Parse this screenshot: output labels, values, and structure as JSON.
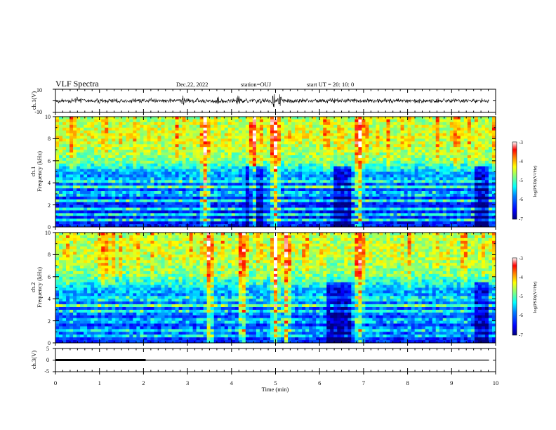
{
  "header": {
    "title": "VLF Spectra",
    "date": "Dec.22, 2022",
    "station": "station=OUJ",
    "start": "start  UT =   20: 10: 0"
  },
  "colors": {
    "background": "#ffffff",
    "axis": "#000000",
    "colormap": [
      "#00007f",
      "#0000ff",
      "#0080ff",
      "#00ffff",
      "#80ff80",
      "#ffff00",
      "#ff8000",
      "#ff0000",
      "#ffffff"
    ]
  },
  "chart_data": [
    {
      "type": "line",
      "name": "ch1-waveform",
      "ylabel": "ch.1(V)",
      "ylim": [
        -10,
        10
      ],
      "yticks": [
        "10",
        "-10"
      ],
      "xlim": [
        0,
        10
      ],
      "baseline_v": 0,
      "typical_amplitude_v": 2,
      "bursts": [
        {
          "t_min": 0.48,
          "amp_v": 6
        },
        {
          "t_min": 2.9,
          "amp_v": 5
        },
        {
          "t_min": 3.7,
          "amp_v": 5
        },
        {
          "t_min": 4.15,
          "amp_v": 6
        },
        {
          "t_min": 4.95,
          "amp_v": 10
        },
        {
          "t_min": 5.1,
          "amp_v": 8
        }
      ]
    },
    {
      "type": "heatmap",
      "name": "ch1-spectrogram",
      "title": "",
      "xlabel": "",
      "ylabel_line1": "ch.1",
      "ylabel_line2": "Frequency  (kHz)",
      "ylim": [
        0,
        10
      ],
      "yticks": [
        "0",
        "2",
        "4",
        "6",
        "8",
        "10"
      ],
      "xlim": [
        0,
        10
      ],
      "colorbar": {
        "label": "log(PSD)(V²/Hz)",
        "range": [
          -7,
          -3
        ],
        "ticks": [
          "-3",
          "-4",
          "-5",
          "-6",
          "-7"
        ]
      },
      "background_level_by_freq_khz": [
        [
          0,
          -6.4
        ],
        [
          2,
          -6.3
        ],
        [
          4,
          -6.0
        ],
        [
          5,
          -5.6
        ],
        [
          6,
          -4.8
        ],
        [
          8,
          -4.4
        ],
        [
          10,
          -4.6
        ]
      ],
      "bright_bands_khz": [
        0.6,
        1.1,
        1.6,
        2.4,
        3.0,
        3.6,
        4.2
      ],
      "quiet_intervals_min": [
        [
          4.3,
          4.7
        ],
        [
          6.35,
          6.75
        ],
        [
          9.5,
          9.85
        ]
      ],
      "bursts_min": [
        3.4,
        4.5,
        5.0,
        6.9
      ]
    },
    {
      "type": "heatmap",
      "name": "ch2-spectrogram",
      "title": "",
      "xlabel": "",
      "ylabel_line1": "ch.2",
      "ylabel_line2": "Frequency  (kHz)",
      "ylim": [
        0,
        10
      ],
      "yticks": [
        "0",
        "2",
        "4",
        "6",
        "8",
        "10"
      ],
      "xlim": [
        0,
        10
      ],
      "colorbar": {
        "label": "log(PSD)(V²/Hz)",
        "range": [
          -7,
          -3
        ],
        "ticks": [
          "-3",
          "-4",
          "-5",
          "-6",
          "-7"
        ]
      },
      "background_level_by_freq_khz": [
        [
          0,
          -6.3
        ],
        [
          2,
          -6.2
        ],
        [
          4,
          -5.9
        ],
        [
          5,
          -5.5
        ],
        [
          6,
          -4.9
        ],
        [
          8,
          -4.5
        ],
        [
          10,
          -4.6
        ]
      ],
      "bright_bands_khz": [
        0.7,
        1.2,
        2.0,
        2.8,
        3.4,
        4.0
      ],
      "quiet_intervals_min": [
        [
          6.2,
          6.7
        ],
        [
          9.5,
          9.85
        ]
      ],
      "bursts_min": [
        3.5,
        4.25,
        5.0,
        5.25,
        6.9
      ]
    },
    {
      "type": "line",
      "name": "ch3-waveform",
      "ylabel": "ch.3(V)",
      "xlabel": "Time  (min)",
      "ylim": [
        -5,
        5
      ],
      "yticks": [
        "5",
        "0",
        "-5"
      ],
      "xlim": [
        0,
        10
      ],
      "xticks": [
        "0",
        "1",
        "2",
        "3",
        "4",
        "5",
        "6",
        "7",
        "8",
        "9",
        "10"
      ],
      "segments": [
        {
          "x": [
            0,
            2.05
          ],
          "y": 0,
          "weight": "thick"
        },
        {
          "x": [
            2.05,
            9.85
          ],
          "y": 0,
          "weight": "thin"
        }
      ]
    }
  ]
}
